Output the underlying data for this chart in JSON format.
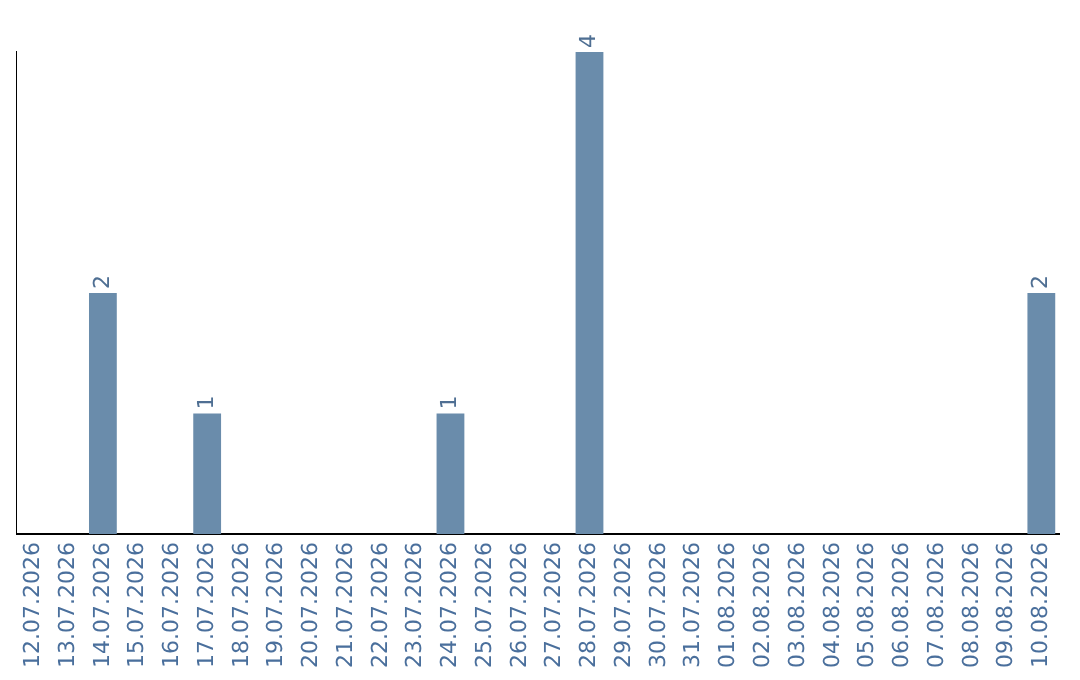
{
  "chart_data": {
    "type": "bar",
    "categories": [
      "12.07.2026",
      "13.07.2026",
      "14.07.2026",
      "15.07.2026",
      "16.07.2026",
      "17.07.2026",
      "18.07.2026",
      "19.07.2026",
      "20.07.2026",
      "21.07.2026",
      "22.07.2026",
      "23.07.2026",
      "24.07.2026",
      "25.07.2026",
      "26.07.2026",
      "27.07.2026",
      "28.07.2026",
      "29.07.2026",
      "30.07.2026",
      "31.07.2026",
      "01.08.2026",
      "02.08.2026",
      "03.08.2026",
      "04.08.2026",
      "05.08.2026",
      "06.08.2026",
      "07.08.2026",
      "08.08.2026",
      "09.08.2026",
      "10.08.2026"
    ],
    "values": [
      0,
      0,
      2,
      0,
      0,
      1,
      0,
      0,
      0,
      0,
      0,
      0,
      1,
      0,
      0,
      0,
      4,
      0,
      0,
      0,
      0,
      0,
      0,
      0,
      0,
      0,
      0,
      0,
      0,
      2
    ],
    "value_labels": [
      null,
      null,
      "2",
      null,
      null,
      "1",
      null,
      null,
      null,
      null,
      null,
      null,
      "1",
      null,
      null,
      null,
      "4",
      null,
      null,
      null,
      null,
      null,
      null,
      null,
      null,
      null,
      null,
      null,
      null,
      "2"
    ],
    "color": "#6a8cab",
    "ylim": [
      0,
      4
    ],
    "tick_labels": "x",
    "grid": false,
    "legend": false
  }
}
